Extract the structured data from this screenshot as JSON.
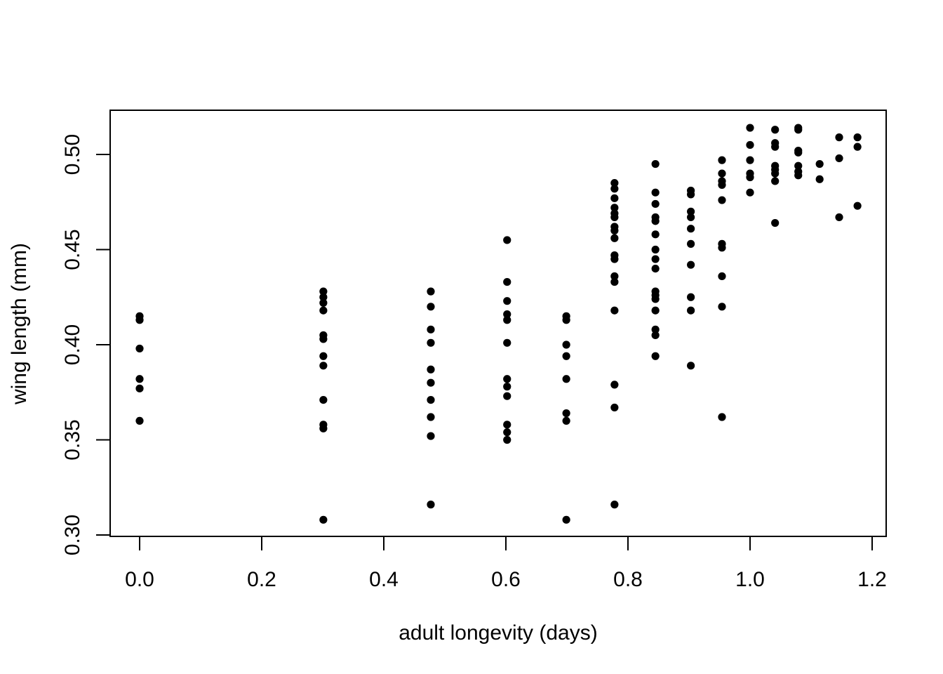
{
  "chart_data": {
    "type": "scatter",
    "title": "",
    "xlabel": "adult longevity (days)",
    "ylabel": "wing length (mm)",
    "xlim": [
      -0.05,
      1.22
    ],
    "ylim": [
      0.3,
      0.523
    ],
    "xticks": [
      0.0,
      0.2,
      0.4,
      0.6,
      0.8,
      1.0,
      1.2
    ],
    "xtick_labels": [
      "0.0",
      "0.2",
      "0.4",
      "0.6",
      "0.8",
      "1.0",
      "1.2"
    ],
    "yticks": [
      0.3,
      0.35,
      0.4,
      0.45,
      0.5
    ],
    "ytick_labels": [
      "0.30",
      "0.35",
      "0.40",
      "0.45",
      "0.50"
    ],
    "grid": false,
    "marker": "filled-circle",
    "marker_color": "#000000",
    "points": [
      [
        0.0,
        0.415
      ],
      [
        0.0,
        0.413
      ],
      [
        0.0,
        0.398
      ],
      [
        0.0,
        0.382
      ],
      [
        0.0,
        0.377
      ],
      [
        0.0,
        0.36
      ],
      [
        0.301,
        0.428
      ],
      [
        0.301,
        0.425
      ],
      [
        0.301,
        0.422
      ],
      [
        0.301,
        0.418
      ],
      [
        0.301,
        0.405
      ],
      [
        0.301,
        0.403
      ],
      [
        0.301,
        0.394
      ],
      [
        0.301,
        0.389
      ],
      [
        0.301,
        0.371
      ],
      [
        0.301,
        0.358
      ],
      [
        0.301,
        0.356
      ],
      [
        0.301,
        0.308
      ],
      [
        0.477,
        0.428
      ],
      [
        0.477,
        0.42
      ],
      [
        0.477,
        0.408
      ],
      [
        0.477,
        0.401
      ],
      [
        0.477,
        0.387
      ],
      [
        0.477,
        0.38
      ],
      [
        0.477,
        0.371
      ],
      [
        0.477,
        0.362
      ],
      [
        0.477,
        0.352
      ],
      [
        0.477,
        0.316
      ],
      [
        0.602,
        0.455
      ],
      [
        0.602,
        0.433
      ],
      [
        0.602,
        0.423
      ],
      [
        0.602,
        0.416
      ],
      [
        0.602,
        0.413
      ],
      [
        0.602,
        0.401
      ],
      [
        0.602,
        0.382
      ],
      [
        0.602,
        0.378
      ],
      [
        0.602,
        0.373
      ],
      [
        0.602,
        0.358
      ],
      [
        0.602,
        0.354
      ],
      [
        0.602,
        0.35
      ],
      [
        0.699,
        0.415
      ],
      [
        0.699,
        0.413
      ],
      [
        0.699,
        0.4
      ],
      [
        0.699,
        0.394
      ],
      [
        0.699,
        0.382
      ],
      [
        0.699,
        0.364
      ],
      [
        0.699,
        0.36
      ],
      [
        0.699,
        0.308
      ],
      [
        0.778,
        0.485
      ],
      [
        0.778,
        0.482
      ],
      [
        0.778,
        0.477
      ],
      [
        0.778,
        0.472
      ],
      [
        0.778,
        0.469
      ],
      [
        0.778,
        0.467
      ],
      [
        0.778,
        0.462
      ],
      [
        0.778,
        0.46
      ],
      [
        0.778,
        0.456
      ],
      [
        0.778,
        0.447
      ],
      [
        0.778,
        0.445
      ],
      [
        0.778,
        0.436
      ],
      [
        0.778,
        0.433
      ],
      [
        0.778,
        0.418
      ],
      [
        0.778,
        0.379
      ],
      [
        0.778,
        0.367
      ],
      [
        0.778,
        0.316
      ],
      [
        0.845,
        0.495
      ],
      [
        0.845,
        0.48
      ],
      [
        0.845,
        0.474
      ],
      [
        0.845,
        0.467
      ],
      [
        0.845,
        0.465
      ],
      [
        0.845,
        0.458
      ],
      [
        0.845,
        0.45
      ],
      [
        0.845,
        0.445
      ],
      [
        0.845,
        0.44
      ],
      [
        0.845,
        0.428
      ],
      [
        0.845,
        0.426
      ],
      [
        0.845,
        0.424
      ],
      [
        0.845,
        0.418
      ],
      [
        0.845,
        0.408
      ],
      [
        0.845,
        0.405
      ],
      [
        0.845,
        0.394
      ],
      [
        0.903,
        0.481
      ],
      [
        0.903,
        0.479
      ],
      [
        0.903,
        0.47
      ],
      [
        0.903,
        0.467
      ],
      [
        0.903,
        0.461
      ],
      [
        0.903,
        0.453
      ],
      [
        0.903,
        0.442
      ],
      [
        0.903,
        0.425
      ],
      [
        0.903,
        0.418
      ],
      [
        0.903,
        0.389
      ],
      [
        0.954,
        0.497
      ],
      [
        0.954,
        0.49
      ],
      [
        0.954,
        0.486
      ],
      [
        0.954,
        0.484
      ],
      [
        0.954,
        0.476
      ],
      [
        0.954,
        0.453
      ],
      [
        0.954,
        0.451
      ],
      [
        0.954,
        0.436
      ],
      [
        0.954,
        0.42
      ],
      [
        0.954,
        0.362
      ],
      [
        1.0,
        0.514
      ],
      [
        1.0,
        0.505
      ],
      [
        1.0,
        0.497
      ],
      [
        1.0,
        0.49
      ],
      [
        1.0,
        0.488
      ],
      [
        1.0,
        0.48
      ],
      [
        1.041,
        0.513
      ],
      [
        1.041,
        0.506
      ],
      [
        1.041,
        0.504
      ],
      [
        1.041,
        0.494
      ],
      [
        1.041,
        0.492
      ],
      [
        1.041,
        0.49
      ],
      [
        1.041,
        0.486
      ],
      [
        1.041,
        0.464
      ],
      [
        1.079,
        0.514
      ],
      [
        1.079,
        0.513
      ],
      [
        1.079,
        0.502
      ],
      [
        1.079,
        0.501
      ],
      [
        1.079,
        0.494
      ],
      [
        1.079,
        0.491
      ],
      [
        1.079,
        0.489
      ],
      [
        1.114,
        0.495
      ],
      [
        1.114,
        0.487
      ],
      [
        1.146,
        0.509
      ],
      [
        1.146,
        0.498
      ],
      [
        1.146,
        0.467
      ],
      [
        1.176,
        0.509
      ],
      [
        1.176,
        0.504
      ],
      [
        1.176,
        0.473
      ]
    ]
  }
}
